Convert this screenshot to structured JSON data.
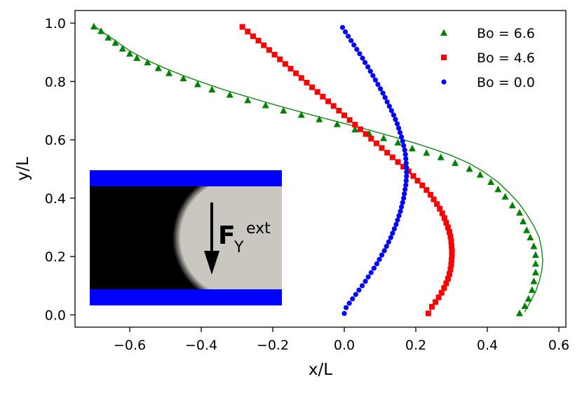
{
  "chart_data": {
    "type": "scatter",
    "xlabel": "x/L",
    "ylabel": "y/L",
    "xlim": [
      -0.75,
      0.62
    ],
    "ylim": [
      -0.045,
      1.045
    ],
    "xticks": [
      -0.6,
      -0.4,
      -0.2,
      0.0,
      0.2,
      0.4,
      0.6
    ],
    "xtick_labels": [
      "−0.6",
      "−0.4",
      "−0.2",
      "0.0",
      "0.2",
      "0.4",
      "0.6"
    ],
    "yticks": [
      0.0,
      0.2,
      0.4,
      0.6,
      0.8,
      1.0
    ],
    "ytick_labels": [
      "0.0",
      "0.2",
      "0.4",
      "0.6",
      "0.8",
      "1.0"
    ],
    "grid": false,
    "legend_position": "top-right",
    "series": [
      {
        "name": "Bo = 6.6",
        "marker": "triangle",
        "color": "#008000",
        "points": [
          [
            -0.7,
            0.988
          ],
          [
            -0.68,
            0.972
          ],
          [
            -0.66,
            0.95
          ],
          [
            -0.64,
            0.932
          ],
          [
            -0.62,
            0.912
          ],
          [
            -0.6,
            0.895
          ],
          [
            -0.58,
            0.88
          ],
          [
            -0.55,
            0.865
          ],
          [
            -0.52,
            0.845
          ],
          [
            -0.49,
            0.828
          ],
          [
            -0.45,
            0.81
          ],
          [
            -0.41,
            0.79
          ],
          [
            -0.37,
            0.772
          ],
          [
            -0.32,
            0.754
          ],
          [
            -0.27,
            0.735
          ],
          [
            -0.22,
            0.718
          ],
          [
            -0.17,
            0.7
          ],
          [
            -0.12,
            0.685
          ],
          [
            -0.07,
            0.67
          ],
          [
            -0.02,
            0.653
          ],
          [
            0.03,
            0.635
          ],
          [
            0.07,
            0.62
          ],
          [
            0.11,
            0.605
          ],
          [
            0.15,
            0.59
          ],
          [
            0.19,
            0.57
          ],
          [
            0.23,
            0.555
          ],
          [
            0.27,
            0.54
          ],
          [
            0.31,
            0.52
          ],
          [
            0.35,
            0.5
          ],
          [
            0.38,
            0.48
          ],
          [
            0.41,
            0.455
          ],
          [
            0.43,
            0.43
          ],
          [
            0.45,
            0.405
          ],
          [
            0.47,
            0.375
          ],
          [
            0.49,
            0.35
          ],
          [
            0.5,
            0.32
          ],
          [
            0.51,
            0.29
          ],
          [
            0.52,
            0.265
          ],
          [
            0.53,
            0.235
          ],
          [
            0.535,
            0.205
          ],
          [
            0.535,
            0.175
          ],
          [
            0.535,
            0.145
          ],
          [
            0.53,
            0.115
          ],
          [
            0.525,
            0.085
          ],
          [
            0.515,
            0.055
          ],
          [
            0.505,
            0.03
          ],
          [
            0.49,
            0.005
          ]
        ],
        "curve": [
          [
            -0.7,
            0.99
          ],
          [
            -0.65,
            0.948
          ],
          [
            -0.6,
            0.905
          ],
          [
            -0.55,
            0.872
          ],
          [
            -0.5,
            0.845
          ],
          [
            -0.45,
            0.82
          ],
          [
            -0.4,
            0.798
          ],
          [
            -0.35,
            0.777
          ],
          [
            -0.3,
            0.758
          ],
          [
            -0.25,
            0.74
          ],
          [
            -0.2,
            0.722
          ],
          [
            -0.15,
            0.705
          ],
          [
            -0.1,
            0.688
          ],
          [
            -0.05,
            0.672
          ],
          [
            0.0,
            0.656
          ],
          [
            0.05,
            0.64
          ],
          [
            0.1,
            0.623
          ],
          [
            0.15,
            0.606
          ],
          [
            0.2,
            0.588
          ],
          [
            0.25,
            0.568
          ],
          [
            0.3,
            0.546
          ],
          [
            0.35,
            0.519
          ],
          [
            0.39,
            0.49
          ],
          [
            0.43,
            0.455
          ],
          [
            0.46,
            0.42
          ],
          [
            0.49,
            0.38
          ],
          [
            0.51,
            0.345
          ],
          [
            0.53,
            0.305
          ],
          [
            0.545,
            0.265
          ],
          [
            0.552,
            0.225
          ],
          [
            0.555,
            0.185
          ],
          [
            0.552,
            0.15
          ],
          [
            0.545,
            0.115
          ],
          [
            0.535,
            0.08
          ],
          [
            0.52,
            0.045
          ],
          [
            0.505,
            0.01
          ]
        ]
      },
      {
        "name": "Bo = 4.6",
        "marker": "square",
        "color": "#ff0000",
        "points": [
          [
            -0.285,
            0.987
          ],
          [
            -0.27,
            0.971
          ],
          [
            -0.255,
            0.955
          ],
          [
            -0.24,
            0.94
          ],
          [
            -0.225,
            0.924
          ],
          [
            -0.21,
            0.908
          ],
          [
            -0.195,
            0.892
          ],
          [
            -0.18,
            0.876
          ],
          [
            -0.165,
            0.86
          ],
          [
            -0.15,
            0.844
          ],
          [
            -0.135,
            0.828
          ],
          [
            -0.12,
            0.812
          ],
          [
            -0.105,
            0.796
          ],
          [
            -0.09,
            0.78
          ],
          [
            -0.075,
            0.764
          ],
          [
            -0.06,
            0.748
          ],
          [
            -0.045,
            0.732
          ],
          [
            -0.03,
            0.716
          ],
          [
            -0.015,
            0.7
          ],
          [
            0.0,
            0.684
          ],
          [
            0.015,
            0.668
          ],
          [
            0.03,
            0.652
          ],
          [
            0.045,
            0.636
          ],
          [
            0.06,
            0.62
          ],
          [
            0.075,
            0.604
          ],
          [
            0.09,
            0.588
          ],
          [
            0.105,
            0.572
          ],
          [
            0.12,
            0.556
          ],
          [
            0.135,
            0.54
          ],
          [
            0.15,
            0.524
          ],
          [
            0.165,
            0.508
          ],
          [
            0.18,
            0.492
          ],
          [
            0.193,
            0.476
          ],
          [
            0.205,
            0.46
          ],
          [
            0.218,
            0.444
          ],
          [
            0.23,
            0.428
          ],
          [
            0.241,
            0.412
          ],
          [
            0.25,
            0.396
          ],
          [
            0.259,
            0.38
          ],
          [
            0.267,
            0.364
          ],
          [
            0.274,
            0.348
          ],
          [
            0.28,
            0.332
          ],
          [
            0.285,
            0.316
          ],
          [
            0.29,
            0.3
          ],
          [
            0.294,
            0.284
          ],
          [
            0.297,
            0.268
          ],
          [
            0.299,
            0.252
          ],
          [
            0.3,
            0.236
          ],
          [
            0.301,
            0.22
          ],
          [
            0.301,
            0.204
          ],
          [
            0.3,
            0.188
          ],
          [
            0.299,
            0.172
          ],
          [
            0.297,
            0.156
          ],
          [
            0.294,
            0.14
          ],
          [
            0.29,
            0.124
          ],
          [
            0.285,
            0.108
          ],
          [
            0.279,
            0.092
          ],
          [
            0.272,
            0.076
          ],
          [
            0.264,
            0.06
          ],
          [
            0.255,
            0.044
          ],
          [
            0.245,
            0.028
          ],
          [
            0.235,
            0.005
          ]
        ],
        "curve": [
          [
            -0.285,
            0.987
          ],
          [
            0.0,
            0.684
          ],
          [
            0.12,
            0.556
          ],
          [
            0.18,
            0.492
          ],
          [
            0.23,
            0.428
          ],
          [
            0.267,
            0.364
          ],
          [
            0.29,
            0.3
          ],
          [
            0.3,
            0.236
          ],
          [
            0.301,
            0.204
          ],
          [
            0.297,
            0.156
          ],
          [
            0.285,
            0.108
          ],
          [
            0.264,
            0.06
          ],
          [
            0.235,
            0.005
          ]
        ]
      },
      {
        "name": "Bo = 0.0",
        "marker": "circle",
        "color": "#0000ff",
        "points": [
          [
            -0.005,
            0.985
          ],
          [
            0.003,
            0.97
          ],
          [
            0.011,
            0.955
          ],
          [
            0.019,
            0.94
          ],
          [
            0.027,
            0.925
          ],
          [
            0.035,
            0.91
          ],
          [
            0.043,
            0.895
          ],
          [
            0.051,
            0.88
          ],
          [
            0.058,
            0.865
          ],
          [
            0.066,
            0.85
          ],
          [
            0.073,
            0.835
          ],
          [
            0.08,
            0.82
          ],
          [
            0.087,
            0.805
          ],
          [
            0.094,
            0.79
          ],
          [
            0.101,
            0.775
          ],
          [
            0.108,
            0.76
          ],
          [
            0.114,
            0.745
          ],
          [
            0.12,
            0.73
          ],
          [
            0.126,
            0.715
          ],
          [
            0.132,
            0.7
          ],
          [
            0.138,
            0.685
          ],
          [
            0.143,
            0.67
          ],
          [
            0.148,
            0.655
          ],
          [
            0.152,
            0.64
          ],
          [
            0.156,
            0.625
          ],
          [
            0.16,
            0.61
          ],
          [
            0.163,
            0.595
          ],
          [
            0.166,
            0.58
          ],
          [
            0.169,
            0.565
          ],
          [
            0.171,
            0.55
          ],
          [
            0.172,
            0.535
          ],
          [
            0.173,
            0.52
          ],
          [
            0.174,
            0.505
          ],
          [
            0.174,
            0.49
          ],
          [
            0.174,
            0.475
          ],
          [
            0.173,
            0.46
          ],
          [
            0.172,
            0.445
          ],
          [
            0.17,
            0.43
          ],
          [
            0.168,
            0.415
          ],
          [
            0.166,
            0.4
          ],
          [
            0.163,
            0.385
          ],
          [
            0.16,
            0.37
          ],
          [
            0.157,
            0.355
          ],
          [
            0.153,
            0.34
          ],
          [
            0.149,
            0.325
          ],
          [
            0.145,
            0.31
          ],
          [
            0.14,
            0.295
          ],
          [
            0.135,
            0.28
          ],
          [
            0.13,
            0.265
          ],
          [
            0.124,
            0.25
          ],
          [
            0.118,
            0.235
          ],
          [
            0.112,
            0.22
          ],
          [
            0.105,
            0.205
          ],
          [
            0.098,
            0.19
          ],
          [
            0.091,
            0.175
          ],
          [
            0.083,
            0.16
          ],
          [
            0.075,
            0.145
          ],
          [
            0.067,
            0.13
          ],
          [
            0.059,
            0.115
          ],
          [
            0.05,
            0.1
          ],
          [
            0.041,
            0.085
          ],
          [
            0.032,
            0.07
          ],
          [
            0.023,
            0.055
          ],
          [
            0.014,
            0.04
          ],
          [
            0.005,
            0.025
          ],
          [
            0.0,
            0.005
          ]
        ],
        "curve": []
      }
    ],
    "inset": {
      "label_main": "F",
      "label_sub": "Y",
      "label_sup": "ext",
      "wall_color": "#0000ff",
      "fluid_dark_color": "#000000",
      "fluid_light_color": "#cac7c0"
    }
  }
}
